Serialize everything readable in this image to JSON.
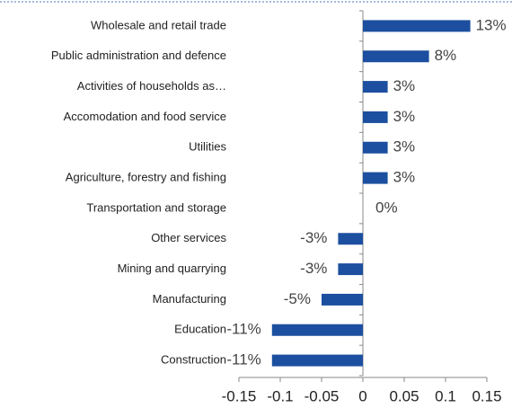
{
  "chart_data": {
    "type": "bar",
    "orientation": "horizontal",
    "categories": [
      "Wholesale and retail trade",
      "Public administration and defence",
      "Activities of households as…",
      "Accomodation and food service",
      "Utilities",
      "Agriculture, forestry and fishing",
      "Transportation and storage",
      "Other services",
      "Mining and quarrying",
      "Manufacturing",
      "Education",
      "Construction"
    ],
    "values": [
      0.13,
      0.08,
      0.03,
      0.03,
      0.03,
      0.03,
      0,
      -0.03,
      -0.03,
      -0.05,
      -0.11,
      -0.11
    ],
    "value_labels": [
      "13%",
      "8%",
      "3%",
      "3%",
      "3%",
      "3%",
      "0%",
      "-3%",
      "-3%",
      "-5%",
      "-11%",
      "-11%"
    ],
    "color": "#1c4f9f",
    "xlim": [
      -0.15,
      0.15
    ],
    "xticks": [
      -0.15,
      -0.1,
      -0.05,
      0,
      0.05,
      0.1,
      0.15
    ],
    "grid": false
  }
}
